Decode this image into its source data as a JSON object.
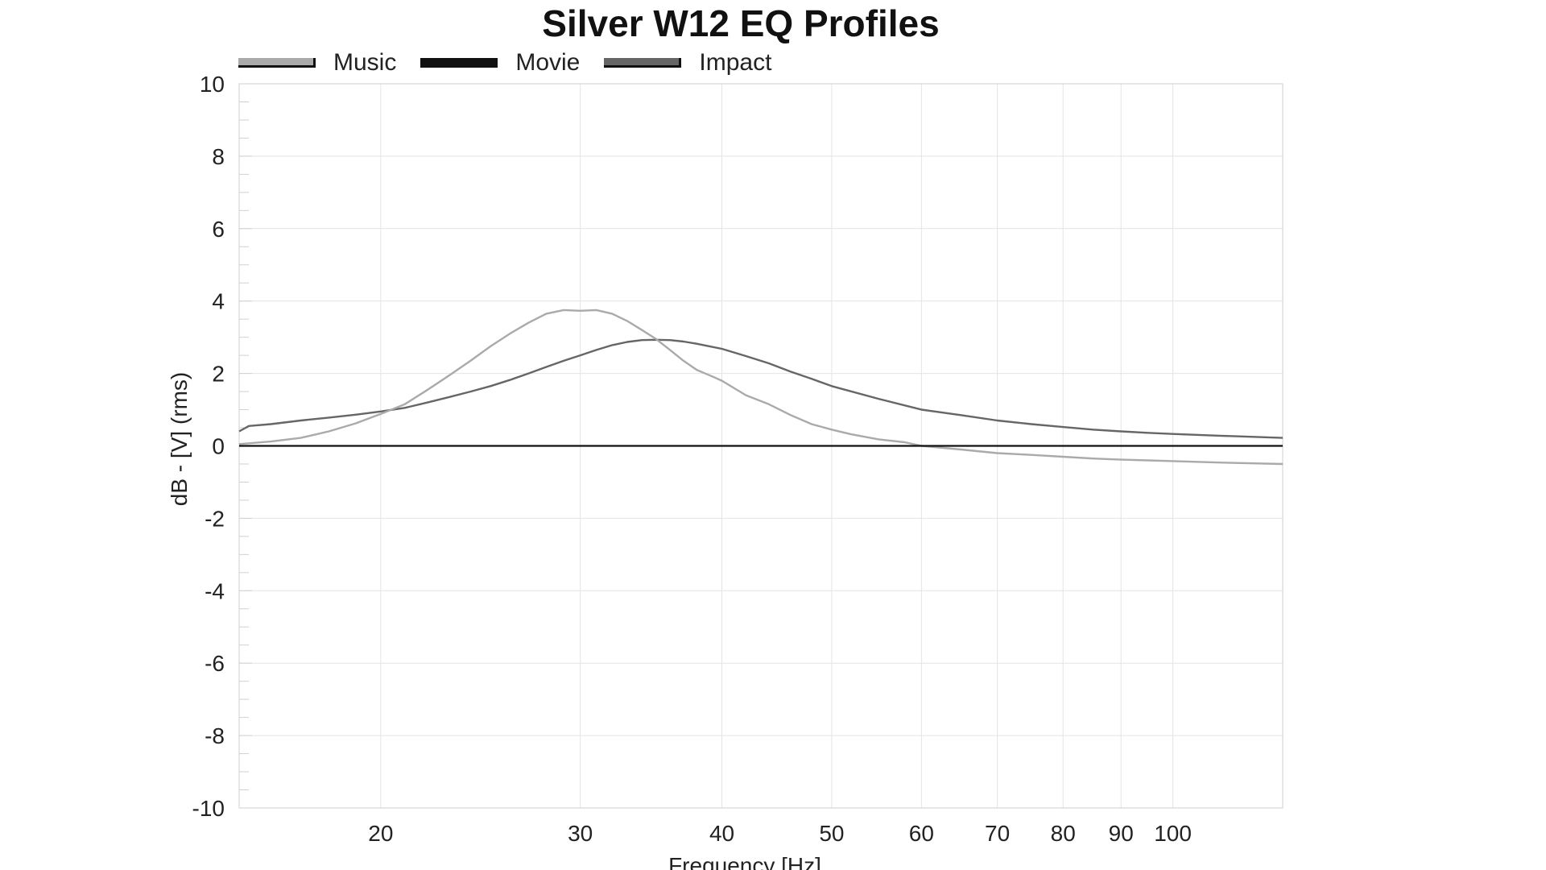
{
  "chart_data": {
    "type": "line",
    "title": "Silver W12 EQ Profiles",
    "xlabel": "Frequency [Hz]",
    "ylabel": "dB - [V]  (rms)",
    "xscale": "log",
    "xlim": [
      15,
      125
    ],
    "ylim": [
      -10,
      10
    ],
    "xticks": [
      20,
      30,
      40,
      50,
      60,
      70,
      80,
      90,
      100
    ],
    "xtick_labels": [
      "20",
      "30",
      "40",
      "50",
      "60",
      "70",
      "80",
      "90",
      "100"
    ],
    "yticks": [
      -10,
      -8,
      -6,
      -4,
      -2,
      0,
      2,
      4,
      6,
      8,
      10
    ],
    "ytick_labels": [
      "-10",
      "-8",
      "-6",
      "-4",
      "-2",
      "0",
      "2",
      "4",
      "6",
      "8",
      "10"
    ],
    "grid": true,
    "legend_position": "top-left",
    "series": [
      {
        "name": "Music",
        "color": "#aaaaaa",
        "x": [
          15,
          16,
          17,
          18,
          19,
          20,
          21,
          22,
          23,
          24,
          25,
          26,
          27,
          28,
          29,
          30,
          31,
          32,
          33,
          34,
          35,
          36,
          37,
          38,
          39,
          40,
          42,
          44,
          46,
          48,
          50,
          52,
          55,
          58,
          60,
          65,
          70,
          75,
          80,
          85,
          90,
          95,
          100,
          110,
          125
        ],
        "y": [
          0.05,
          0.12,
          0.22,
          0.4,
          0.62,
          0.88,
          1.15,
          1.55,
          1.95,
          2.35,
          2.75,
          3.1,
          3.4,
          3.65,
          3.75,
          3.73,
          3.75,
          3.65,
          3.45,
          3.2,
          2.95,
          2.65,
          2.35,
          2.1,
          1.95,
          1.8,
          1.4,
          1.15,
          0.85,
          0.6,
          0.45,
          0.32,
          0.18,
          0.1,
          0.0,
          -0.1,
          -0.2,
          -0.25,
          -0.3,
          -0.35,
          -0.38,
          -0.4,
          -0.42,
          -0.46,
          -0.5
        ]
      },
      {
        "name": "Movie",
        "color": "#111111",
        "x": [
          15,
          125
        ],
        "y": [
          0,
          0
        ]
      },
      {
        "name": "Impact",
        "color": "#666666",
        "x": [
          15,
          15.3,
          16,
          17,
          18,
          19,
          20,
          21,
          22,
          23,
          24,
          25,
          26,
          27,
          28,
          29,
          30,
          31,
          32,
          33,
          34,
          35,
          36,
          37,
          38,
          39,
          40,
          42,
          44,
          46,
          48,
          50,
          55,
          60,
          65,
          70,
          75,
          80,
          85,
          90,
          95,
          100,
          110,
          125
        ],
        "y": [
          0.4,
          0.55,
          0.6,
          0.7,
          0.78,
          0.86,
          0.95,
          1.05,
          1.2,
          1.35,
          1.5,
          1.65,
          1.82,
          2.0,
          2.18,
          2.35,
          2.5,
          2.65,
          2.78,
          2.87,
          2.92,
          2.93,
          2.92,
          2.88,
          2.82,
          2.75,
          2.68,
          2.48,
          2.28,
          2.05,
          1.85,
          1.65,
          1.3,
          1.0,
          0.85,
          0.7,
          0.6,
          0.52,
          0.45,
          0.4,
          0.36,
          0.33,
          0.28,
          0.22
        ]
      }
    ]
  }
}
